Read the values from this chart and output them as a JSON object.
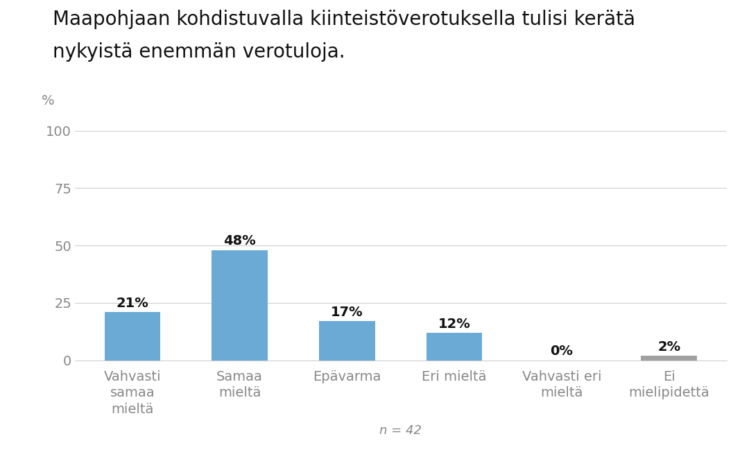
{
  "title_line1": "Maapohjaan kohdistuvalla kiinteistöverotuksella tulisi kerätä",
  "title_line2": "nykyistä enemmän verotuloja.",
  "categories": [
    "Vahvasti\nsamaa\nmieltä",
    "Samaa\nmieltä",
    "Epävarma",
    "Eri mieltä",
    "Vahvasti eri\nmieltä",
    "Ei\nmielipidettä"
  ],
  "values": [
    21,
    48,
    17,
    12,
    0,
    2
  ],
  "bar_colors": [
    "#6aaad4",
    "#6aaad4",
    "#6aaad4",
    "#6aaad4",
    "#6aaad4",
    "#a0a0a0"
  ],
  "n_label": "n = 42",
  "ylim": [
    0,
    108
  ],
  "yticks": [
    0,
    25,
    50,
    75,
    100
  ],
  "background_color": "#ffffff",
  "title_fontsize": 20,
  "tick_fontsize": 14,
  "n_fontsize": 13,
  "bar_label_fontsize": 14,
  "ylabel_text": "%",
  "ylabel_fontsize": 14,
  "title_color": "#111111",
  "tick_color": "#888888",
  "bar_label_color": "#111111",
  "grid_color": "#d0d0d0",
  "n_color": "#888888"
}
